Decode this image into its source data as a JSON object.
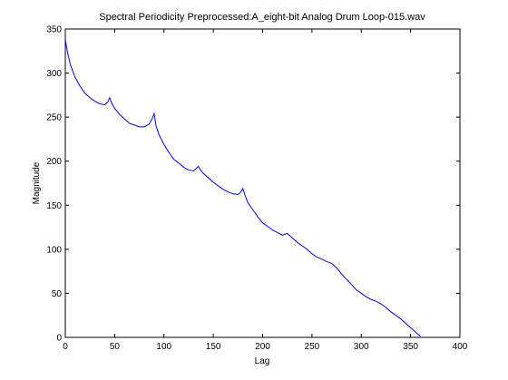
{
  "chart_data": {
    "type": "line",
    "title": "Spectral Periodicity Preprocessed:A_eight-bit Analog Drum Loop-015.wav",
    "xlabel": "Lag",
    "ylabel": "Magnitude",
    "xlim": [
      0,
      400
    ],
    "ylim": [
      0,
      350
    ],
    "xticks": [
      0,
      50,
      100,
      150,
      200,
      250,
      300,
      350,
      400
    ],
    "yticks": [
      0,
      50,
      100,
      150,
      200,
      250,
      300,
      350
    ],
    "grid": false,
    "line_color": "#0000ff",
    "series": [
      {
        "x": [
          0,
          2,
          5,
          10,
          15,
          20,
          25,
          30,
          35,
          40,
          43,
          45,
          47,
          50,
          55,
          60,
          65,
          70,
          75,
          80,
          85,
          88,
          90,
          92,
          95,
          100,
          105,
          110,
          115,
          120,
          125,
          130,
          133,
          135,
          137,
          140,
          145,
          150,
          155,
          160,
          165,
          170,
          175,
          178,
          180,
          182,
          185,
          190,
          195,
          200,
          205,
          210,
          215,
          220,
          225,
          230,
          235,
          240,
          245,
          250,
          255,
          260,
          265,
          270,
          275,
          280,
          285,
          290,
          295,
          300,
          305,
          310,
          315,
          320,
          325,
          330,
          335,
          340,
          345,
          350,
          355,
          360
        ],
        "y": [
          338,
          325,
          310,
          295,
          285,
          277,
          272,
          268,
          265,
          264,
          267,
          272,
          266,
          260,
          253,
          248,
          243,
          241,
          239,
          239,
          242,
          248,
          254,
          240,
          230,
          219,
          210,
          202,
          198,
          193,
          190,
          189,
          192,
          194,
          190,
          186,
          181,
          176,
          172,
          168,
          165,
          163,
          162,
          165,
          169,
          162,
          153,
          145,
          137,
          130,
          126,
          122,
          119,
          116,
          118,
          113,
          108,
          104,
          100,
          95,
          91,
          89,
          86,
          84,
          79,
          72,
          66,
          60,
          54,
          50,
          46,
          43,
          41,
          38,
          34,
          29,
          25,
          21,
          16,
          11,
          6,
          1
        ]
      }
    ]
  }
}
